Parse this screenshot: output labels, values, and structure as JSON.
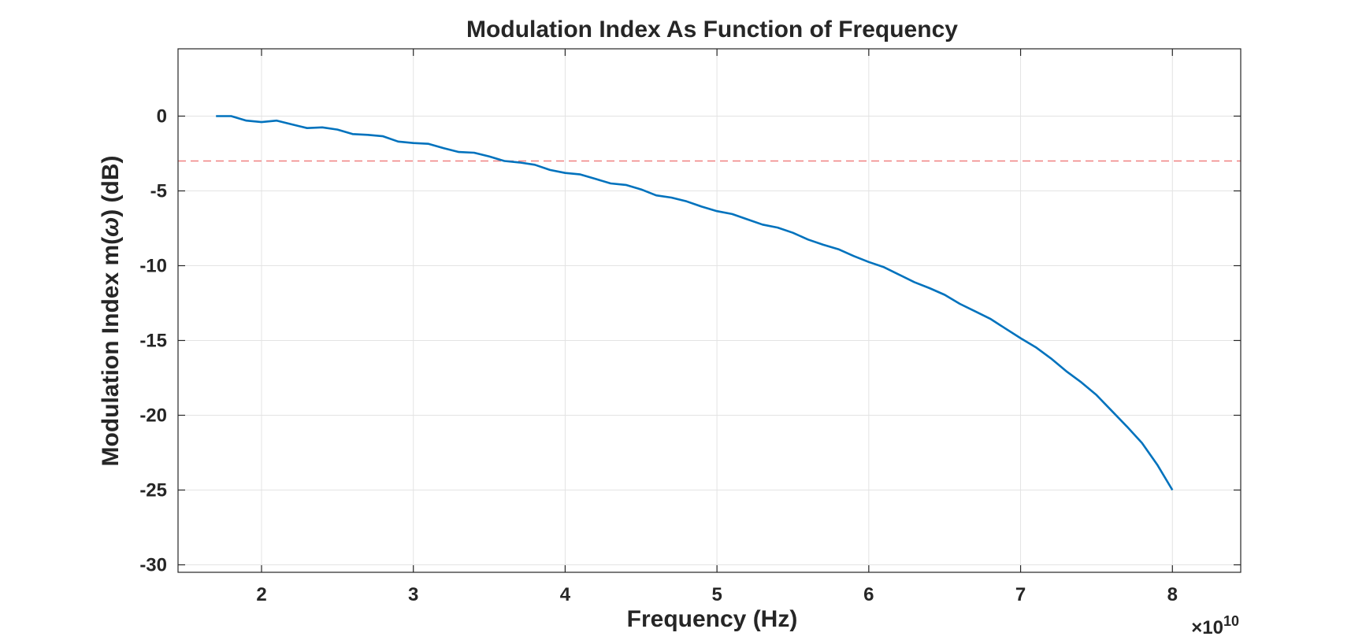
{
  "chart_data": {
    "type": "line",
    "title": "Modulation Index As Function of Frequency",
    "xlabel": "Frequency (Hz)",
    "ylabel_prefix": "Modulation  Index  m(",
    "ylabel_symbol": "ω",
    "ylabel_suffix": ")  (dB)",
    "x_exponent_label": "×10",
    "x_exponent_value": "10",
    "xlim": [
      1.45,
      8.45
    ],
    "ylim": [
      -30.5,
      4.5
    ],
    "xticks": [
      2,
      3,
      4,
      5,
      6,
      7,
      8
    ],
    "xtick_labels": [
      "2",
      "3",
      "4",
      "5",
      "6",
      "7",
      "8"
    ],
    "yticks": [
      0,
      -5,
      -10,
      -15,
      -20,
      -25,
      -30
    ],
    "ytick_labels": [
      "0",
      "-5",
      "-10",
      "-15",
      "-20",
      "-25",
      "-30"
    ],
    "grid": true,
    "reference_line": {
      "y": -3,
      "style": "dashed",
      "color": "#f08080"
    },
    "series": [
      {
        "color": "#0072bd",
        "x": [
          1.7,
          1.8,
          1.9,
          2.0,
          2.1,
          2.2,
          2.3,
          2.4,
          2.5,
          2.6,
          2.7,
          2.8,
          2.9,
          3.0,
          3.1,
          3.2,
          3.3,
          3.4,
          3.5,
          3.6,
          3.7,
          3.8,
          3.9,
          4.0,
          4.1,
          4.2,
          4.3,
          4.4,
          4.5,
          4.6,
          4.7,
          4.8,
          4.9,
          5.0,
          5.1,
          5.2,
          5.3,
          5.4,
          5.5,
          5.6,
          5.7,
          5.8,
          5.9,
          6.0,
          6.1,
          6.2,
          6.3,
          6.4,
          6.5,
          6.6,
          6.7,
          6.8,
          6.9,
          7.0,
          7.1,
          7.2,
          7.3,
          7.4,
          7.5,
          7.6,
          7.7,
          7.8,
          7.9,
          8.0
        ],
        "values": [
          0.0,
          0.0,
          -0.3,
          -0.4,
          -0.3,
          -0.55,
          -0.8,
          -0.75,
          -0.9,
          -1.2,
          -1.25,
          -1.35,
          -1.7,
          -1.8,
          -1.85,
          -2.15,
          -2.4,
          -2.45,
          -2.7,
          -3.0,
          -3.1,
          -3.25,
          -3.6,
          -3.8,
          -3.9,
          -4.2,
          -4.5,
          -4.6,
          -4.9,
          -5.3,
          -5.45,
          -5.7,
          -6.05,
          -6.35,
          -6.55,
          -6.9,
          -7.25,
          -7.45,
          -7.8,
          -8.25,
          -8.6,
          -8.9,
          -9.35,
          -9.75,
          -10.1,
          -10.6,
          -11.1,
          -11.5,
          -11.95,
          -12.55,
          -13.05,
          -13.55,
          -14.2,
          -14.85,
          -15.45,
          -16.2,
          -17.05,
          -17.8,
          -18.65,
          -19.7,
          -20.75,
          -21.85,
          -23.3,
          -25.0
        ]
      }
    ]
  }
}
